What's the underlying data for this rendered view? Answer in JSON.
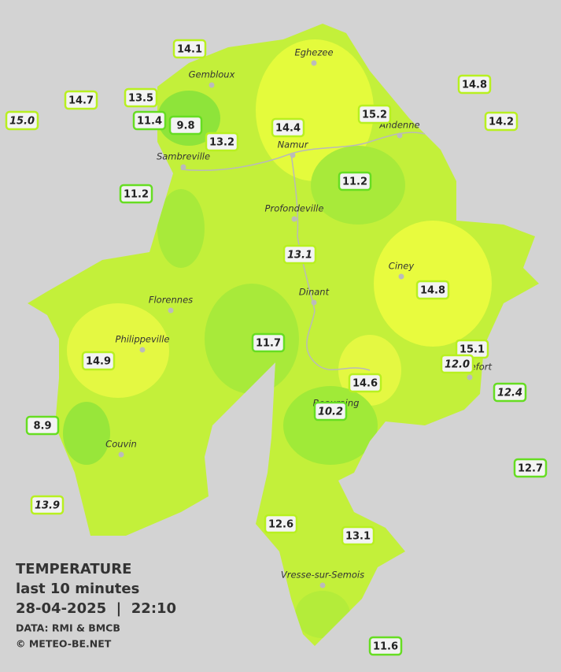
{
  "legend": {
    "title": "TEMPERATURE",
    "period": "last 10 minutes",
    "datetime": "28-04-2025  |  22:10",
    "source": "DATA: RMI & BMCB",
    "credit": "© METEO-BE.NET"
  },
  "towns": [
    "Eghezee",
    "Gembloux",
    "Andenne",
    "Namur",
    "Sambreville",
    "Profondeville",
    "Ciney",
    "Dinant",
    "Florennes",
    "Philippeville",
    "Rochefort",
    "Beauraing",
    "Couvin",
    "Vresse-sur-Semois"
  ],
  "stations": [
    "14.1",
    "14.7",
    "13.5",
    "15.0",
    "11.4",
    "9.8",
    "13.2",
    "14.4",
    "15.2",
    "14.8",
    "14.2",
    "11.2",
    "11.2",
    "13.1",
    "14.8",
    "11.7",
    "15.1",
    "12.0",
    "14.9",
    "14.6",
    "12.4",
    "10.2",
    "8.9",
    "12.7",
    "13.9",
    "12.6",
    "13.1",
    "11.6"
  ]
}
